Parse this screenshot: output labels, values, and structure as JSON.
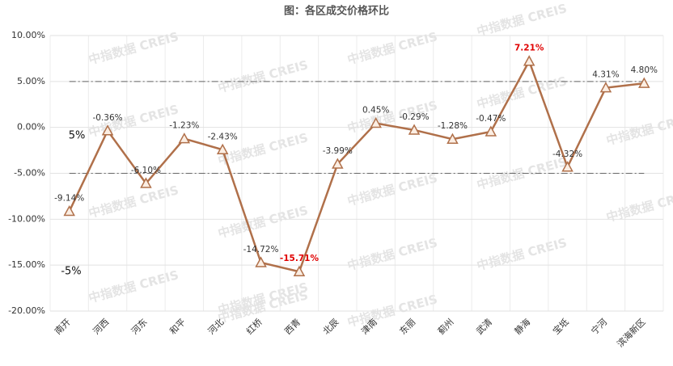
{
  "chart_data": {
    "type": "line",
    "title": "图：各区成交价格环比",
    "categories": [
      "南开",
      "河西",
      "河东",
      "和平",
      "河北",
      "红桥",
      "西青",
      "北辰",
      "津南",
      "东丽",
      "蓟州",
      "武清",
      "静海",
      "宝坻",
      "宁河",
      "滨海新区"
    ],
    "series": [
      {
        "name": "环比",
        "color": "#b0704a",
        "values": [
          -9.14,
          -0.36,
          -6.1,
          -1.23,
          -2.43,
          -14.72,
          -15.71,
          -3.99,
          0.45,
          -0.29,
          -1.28,
          -0.47,
          7.21,
          -4.32,
          4.31,
          4.8
        ],
        "value_labels": [
          "-9.14%",
          "-0.36%",
          "-6.10%",
          "-1.23%",
          "-2.43%",
          "-14.72%",
          "-15.71%",
          "-3.99%",
          "0.45%",
          "-0.29%",
          "-1.28%",
          "-0.47%",
          "7.21%",
          "-4.32%",
          "4.31%",
          "4.80%"
        ],
        "value_label_colors": [
          "#333333",
          "#333333",
          "#333333",
          "#333333",
          "#333333",
          "#333333",
          "#e00000",
          "#333333",
          "#333333",
          "#333333",
          "#333333",
          "#333333",
          "#e00000",
          "#333333",
          "#333333",
          "#333333"
        ]
      }
    ],
    "ylim": [
      -20,
      10
    ],
    "yticks": [
      {
        "value": -20,
        "label": "-20.00%"
      },
      {
        "value": -15,
        "label": "-15.00%"
      },
      {
        "value": -10,
        "label": "-10.00%"
      },
      {
        "value": -5,
        "label": "-5.00%"
      },
      {
        "value": 0,
        "label": "0.00%"
      },
      {
        "value": 5,
        "label": "5.00%"
      },
      {
        "value": 10,
        "label": "10.00%"
      }
    ],
    "reference_lines": [
      {
        "value": 5,
        "label": "5%"
      },
      {
        "value": -5,
        "label": "-5%"
      }
    ],
    "grid": true,
    "watermark": "中指数据 CREIS"
  }
}
